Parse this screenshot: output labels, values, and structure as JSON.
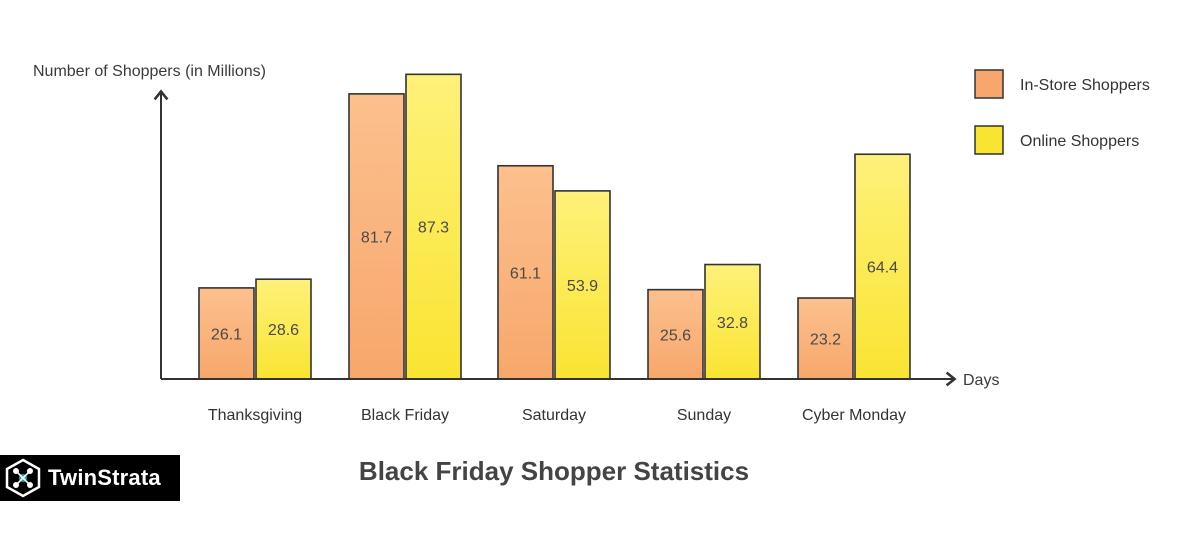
{
  "chart_data": {
    "type": "bar",
    "title": "Black Friday Shopper Statistics",
    "xlabel": "Days",
    "ylabel": "Number of Shoppers (in Millions)",
    "categories": [
      "Thanksgiving",
      "Black Friday",
      "Saturday",
      "Sunday",
      "Cyber Monday"
    ],
    "series": [
      {
        "name": "In-Store Shoppers",
        "values": [
          26.1,
          81.7,
          61.1,
          25.6,
          23.2
        ],
        "color": "#f7a76b",
        "color_top": "#fcc08e"
      },
      {
        "name": "Online Shoppers",
        "values": [
          28.6,
          87.3,
          53.9,
          32.8,
          64.4
        ],
        "color": "#f9e431",
        "color_top": "#fef17a"
      }
    ],
    "ylim": [
      0,
      100
    ],
    "legend_position": "top-right",
    "grid": false,
    "data_labels": true
  },
  "brand": {
    "logo_text": "TwinStrata",
    "logo_icon": "network-node-icon"
  }
}
